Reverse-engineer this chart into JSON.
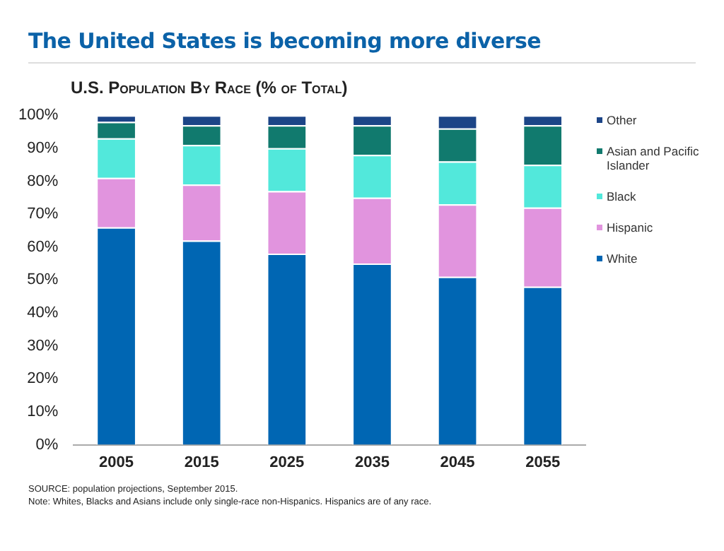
{
  "chart_data": {
    "type": "bar",
    "stacked": true,
    "title": "The United States is becoming more diverse",
    "subtitle": "U.S. Population By Race (% of Total)",
    "categories": [
      "2005",
      "2015",
      "2025",
      "2035",
      "2045",
      "2055"
    ],
    "series": [
      {
        "name": "White",
        "color": "#0066b3",
        "values": [
          66,
          62,
          58,
          55,
          51,
          48
        ]
      },
      {
        "name": "Hispanic",
        "color": "#e194de",
        "values": [
          15,
          17,
          19,
          20,
          22,
          24
        ]
      },
      {
        "name": "Black",
        "color": "#52e8db",
        "values": [
          12,
          12,
          13,
          13,
          13,
          13
        ]
      },
      {
        "name": "Asian and Pacific Islander",
        "color": "#117a6e",
        "values": [
          5,
          6,
          7,
          9,
          10,
          12
        ]
      },
      {
        "name": "Other",
        "color": "#1c4587",
        "values": [
          2,
          3,
          3,
          3,
          4,
          3
        ]
      }
    ],
    "ylim": [
      0,
      100
    ],
    "yticks": [
      {
        "value": 0,
        "label": "0%"
      },
      {
        "value": 10,
        "label": "10%"
      },
      {
        "value": 20,
        "label": "20%"
      },
      {
        "value": 30,
        "label": "30%"
      },
      {
        "value": 40,
        "label": "40%"
      },
      {
        "value": 50,
        "label": "50%"
      },
      {
        "value": 60,
        "label": "60%"
      },
      {
        "value": 70,
        "label": "70%"
      },
      {
        "value": 80,
        "label": "80%"
      },
      {
        "value": 90,
        "label": "90%"
      },
      {
        "value": 100,
        "label": "100%"
      }
    ],
    "grid": false,
    "legend": "right",
    "annotations": [
      "SOURCE: population projections, September 2015.",
      "Note: Whites, Blacks and Asians include only single-race non-Hispanics. Hispanics are of any race."
    ]
  }
}
